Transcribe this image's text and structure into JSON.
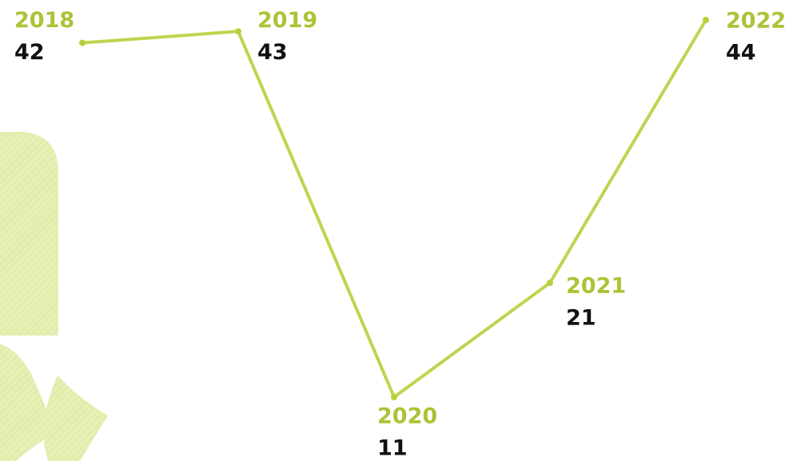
{
  "chart_data": {
    "type": "line",
    "categories": [
      "2018",
      "2019",
      "2020",
      "2021",
      "2022"
    ],
    "values": [
      42,
      43,
      11,
      21,
      44
    ],
    "color": "#b8cf3c"
  }
}
